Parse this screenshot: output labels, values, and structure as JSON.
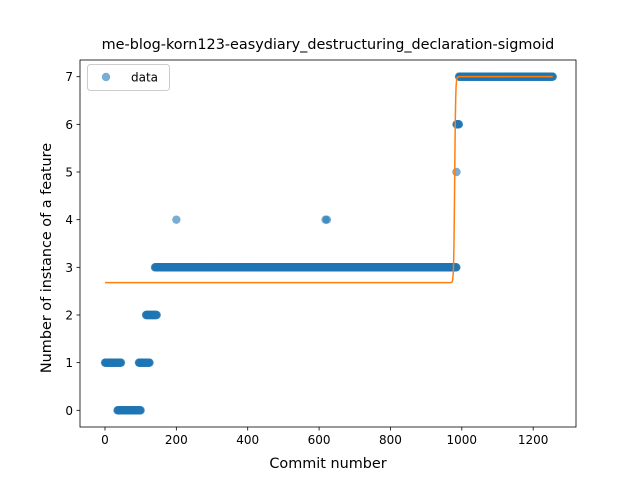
{
  "chart_data": {
    "type": "scatter",
    "title": "me-blog-korn123-easydiary_destructuring_declaration-sigmoid",
    "xlabel": "Commit number",
    "ylabel": "Number of instance of a feature",
    "xlim": [
      -70,
      1320
    ],
    "ylim": [
      -0.35,
      7.35
    ],
    "x_ticks": [
      0,
      200,
      400,
      600,
      800,
      1000,
      1200
    ],
    "y_ticks": [
      0,
      1,
      2,
      3,
      4,
      5,
      6,
      7
    ],
    "grid": false,
    "legend": {
      "placement": "top-left",
      "entries": [
        "data"
      ]
    },
    "colors": {
      "data": "#1f77b4",
      "fit": "#ff7f0e"
    },
    "series": [
      {
        "name": "data",
        "kind": "points",
        "segments": [
          {
            "x_start": 0,
            "x_end": 45,
            "y": 1
          },
          {
            "x_start": 35,
            "x_end": 100,
            "y": 0
          },
          {
            "x_start": 95,
            "x_end": 125,
            "y": 1
          },
          {
            "x_start": 115,
            "x_end": 145,
            "y": 2
          },
          {
            "x_start": 140,
            "x_end": 985,
            "y": 3
          },
          {
            "x_start": 985,
            "x_end": 985,
            "y": 5
          },
          {
            "x_start": 985,
            "x_end": 992,
            "y": 6
          },
          {
            "x_start": 992,
            "x_end": 1255,
            "y": 7
          }
        ],
        "points": [
          {
            "x": 200,
            "y": 4
          },
          {
            "x": 618,
            "y": 4
          },
          {
            "x": 622,
            "y": 4
          }
        ]
      },
      {
        "kind": "line",
        "fit": {
          "low": 2.68,
          "high": 7.0,
          "midpoint": 980,
          "slope": 0.75,
          "x_min": 0,
          "x_max": 1255
        }
      }
    ]
  }
}
